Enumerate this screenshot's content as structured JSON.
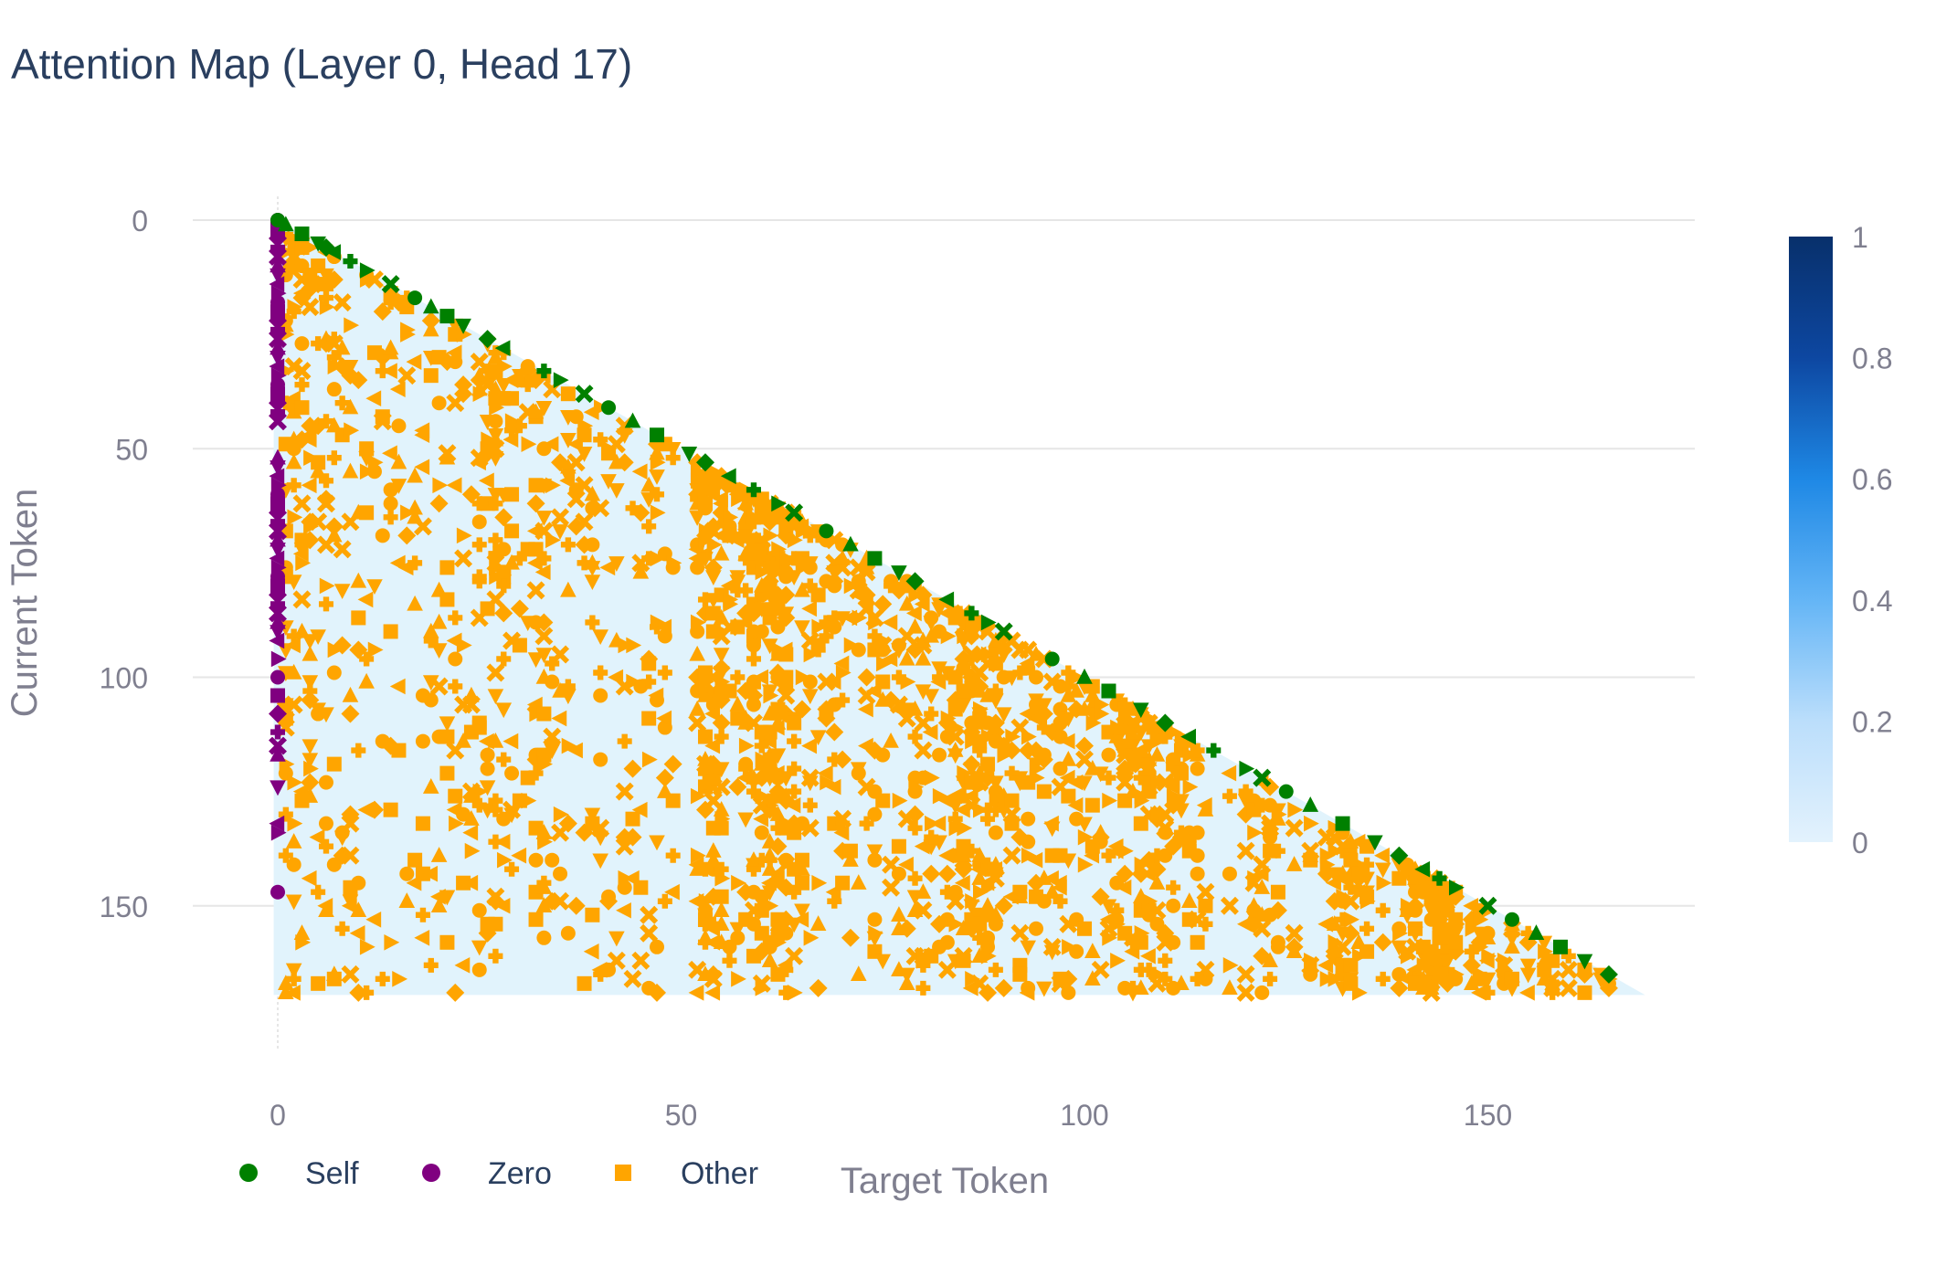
{
  "chart_data": {
    "type": "heatmap",
    "title": "Attention Map (Layer 0, Head 17)",
    "xlabel": "Target Token",
    "ylabel": "Current Token",
    "xlim": [
      -2,
      176
    ],
    "ylim": [
      185,
      -2
    ],
    "x_ticks": [
      0,
      50,
      100,
      150
    ],
    "y_ticks": [
      0,
      50,
      100,
      150
    ],
    "grid": true,
    "y_grid": true,
    "heatmap": {
      "rows": 170,
      "mask": "lower-triangular",
      "dominant_value": 0.05
    },
    "colorbar": {
      "range": [
        0,
        1
      ],
      "ticks": [
        0,
        0.2,
        0.4,
        0.6,
        0.8,
        1
      ],
      "colorscale": [
        "#e3f2fd",
        "#bbdefb",
        "#64b5f6",
        "#1e88e5",
        "#0d47a1",
        "#08306b"
      ]
    },
    "legend": {
      "position": "bottom-left",
      "entries": [
        {
          "label": "Self",
          "color": "#008000",
          "symbol": "circle"
        },
        {
          "label": "Zero",
          "color": "#800080",
          "symbol": "circle"
        },
        {
          "label": "Other",
          "color": "#ffa500",
          "symbol": "square"
        }
      ]
    },
    "series": [
      {
        "name": "Self",
        "color": "#008000",
        "points": [
          [
            0,
            0
          ],
          [
            1,
            1
          ],
          [
            3,
            3
          ],
          [
            5,
            5
          ],
          [
            6,
            6
          ],
          [
            7,
            7
          ],
          [
            9,
            9
          ],
          [
            11,
            11
          ],
          [
            14,
            14
          ],
          [
            17,
            17
          ],
          [
            19,
            19
          ],
          [
            21,
            21
          ],
          [
            23,
            23
          ],
          [
            26,
            26
          ],
          [
            28,
            28
          ],
          [
            33,
            33
          ],
          [
            35,
            35
          ],
          [
            38,
            38
          ],
          [
            41,
            41
          ],
          [
            44,
            44
          ],
          [
            47,
            47
          ],
          [
            51,
            51
          ],
          [
            53,
            53
          ],
          [
            56,
            56
          ],
          [
            59,
            59
          ],
          [
            62,
            62
          ],
          [
            64,
            64
          ],
          [
            68,
            68
          ],
          [
            71,
            71
          ],
          [
            74,
            74
          ],
          [
            77,
            77
          ],
          [
            79,
            79
          ],
          [
            83,
            83
          ],
          [
            86,
            86
          ],
          [
            88,
            88
          ],
          [
            90,
            90
          ],
          [
            96,
            96
          ],
          [
            100,
            100
          ],
          [
            103,
            103
          ],
          [
            107,
            107
          ],
          [
            110,
            110
          ],
          [
            113,
            113
          ],
          [
            116,
            116
          ],
          [
            120,
            120
          ],
          [
            122,
            122
          ],
          [
            125,
            125
          ],
          [
            128,
            128
          ],
          [
            132,
            132
          ],
          [
            136,
            136
          ],
          [
            139,
            139
          ],
          [
            142,
            142
          ],
          [
            144,
            144
          ],
          [
            146,
            146
          ],
          [
            150,
            150
          ],
          [
            153,
            153
          ],
          [
            156,
            156
          ],
          [
            159,
            159
          ],
          [
            162,
            162
          ],
          [
            165,
            165
          ]
        ]
      },
      {
        "name": "Zero",
        "color": "#800080",
        "points": [
          [
            0,
            0
          ],
          [
            0,
            2
          ],
          [
            0,
            4
          ],
          [
            0,
            6
          ],
          [
            0,
            8
          ],
          [
            0,
            10
          ],
          [
            0,
            12
          ],
          [
            0,
            14
          ],
          [
            0,
            16
          ],
          [
            0,
            18
          ],
          [
            0,
            20
          ],
          [
            0,
            22
          ],
          [
            0,
            24
          ],
          [
            0,
            26
          ],
          [
            0,
            28
          ],
          [
            0,
            30
          ],
          [
            0,
            32
          ],
          [
            0,
            34
          ],
          [
            0,
            36
          ],
          [
            0,
            38
          ],
          [
            0,
            40
          ],
          [
            0,
            42
          ],
          [
            0,
            44
          ],
          [
            0,
            52
          ],
          [
            0,
            54
          ],
          [
            0,
            56
          ],
          [
            0,
            58
          ],
          [
            0,
            60
          ],
          [
            0,
            62
          ],
          [
            0,
            64
          ],
          [
            0,
            66
          ],
          [
            0,
            68
          ],
          [
            0,
            70
          ],
          [
            0,
            72
          ],
          [
            0,
            74
          ],
          [
            0,
            76
          ],
          [
            0,
            78
          ],
          [
            0,
            80
          ],
          [
            0,
            82
          ],
          [
            0,
            84
          ],
          [
            0,
            86
          ],
          [
            0,
            88
          ],
          [
            0,
            90
          ],
          [
            0,
            92
          ],
          [
            0,
            96
          ],
          [
            0,
            100
          ],
          [
            0,
            104
          ],
          [
            0,
            108
          ],
          [
            0,
            112
          ],
          [
            0,
            115
          ],
          [
            0,
            117
          ],
          [
            0,
            124
          ],
          [
            0,
            132
          ],
          [
            0,
            134
          ],
          [
            0,
            147
          ]
        ]
      },
      {
        "name": "Other",
        "color": "#ffa500",
        "column_counts": [
          [
            1,
            28
          ],
          [
            2,
            30
          ],
          [
            3,
            26
          ],
          [
            4,
            24
          ],
          [
            5,
            14
          ],
          [
            6,
            22
          ],
          [
            7,
            20
          ],
          [
            8,
            12
          ],
          [
            9,
            18
          ],
          [
            10,
            12
          ],
          [
            11,
            16
          ],
          [
            12,
            10
          ],
          [
            13,
            8
          ],
          [
            14,
            14
          ],
          [
            15,
            10
          ],
          [
            16,
            12
          ],
          [
            17,
            8
          ],
          [
            18,
            10
          ],
          [
            19,
            12
          ],
          [
            20,
            14
          ],
          [
            21,
            10
          ],
          [
            22,
            16
          ],
          [
            23,
            12
          ],
          [
            24,
            10
          ],
          [
            25,
            20
          ],
          [
            26,
            22
          ],
          [
            27,
            30
          ],
          [
            28,
            24
          ],
          [
            29,
            14
          ],
          [
            30,
            8
          ],
          [
            31,
            10
          ],
          [
            32,
            22
          ],
          [
            33,
            24
          ],
          [
            34,
            12
          ],
          [
            35,
            10
          ],
          [
            36,
            14
          ],
          [
            37,
            8
          ],
          [
            38,
            10
          ],
          [
            39,
            12
          ],
          [
            40,
            14
          ],
          [
            41,
            8
          ],
          [
            42,
            10
          ],
          [
            43,
            14
          ],
          [
            44,
            10
          ],
          [
            45,
            8
          ],
          [
            46,
            12
          ],
          [
            47,
            16
          ],
          [
            48,
            10
          ],
          [
            49,
            8
          ],
          [
            52,
            28
          ],
          [
            53,
            44
          ],
          [
            54,
            40
          ],
          [
            55,
            34
          ],
          [
            56,
            12
          ],
          [
            57,
            18
          ],
          [
            58,
            26
          ],
          [
            59,
            30
          ],
          [
            60,
            40
          ],
          [
            61,
            44
          ],
          [
            62,
            42
          ],
          [
            63,
            34
          ],
          [
            64,
            22
          ],
          [
            65,
            16
          ],
          [
            66,
            18
          ],
          [
            67,
            10
          ],
          [
            68,
            12
          ],
          [
            69,
            16
          ],
          [
            70,
            14
          ],
          [
            71,
            8
          ],
          [
            72,
            10
          ],
          [
            73,
            12
          ],
          [
            74,
            16
          ],
          [
            75,
            10
          ],
          [
            76,
            8
          ],
          [
            77,
            12
          ],
          [
            78,
            14
          ],
          [
            79,
            16
          ],
          [
            80,
            18
          ],
          [
            81,
            12
          ],
          [
            82,
            14
          ],
          [
            83,
            16
          ],
          [
            84,
            20
          ],
          [
            85,
            26
          ],
          [
            86,
            28
          ],
          [
            87,
            30
          ],
          [
            88,
            24
          ],
          [
            89,
            22
          ],
          [
            90,
            12
          ],
          [
            91,
            10
          ],
          [
            92,
            12
          ],
          [
            93,
            14
          ],
          [
            94,
            16
          ],
          [
            95,
            12
          ],
          [
            96,
            10
          ],
          [
            97,
            12
          ],
          [
            98,
            14
          ],
          [
            99,
            8
          ],
          [
            100,
            10
          ],
          [
            101,
            12
          ],
          [
            102,
            8
          ],
          [
            103,
            10
          ],
          [
            104,
            14
          ],
          [
            105,
            18
          ],
          [
            106,
            16
          ],
          [
            107,
            20
          ],
          [
            108,
            22
          ],
          [
            109,
            18
          ],
          [
            110,
            16
          ],
          [
            111,
            14
          ],
          [
            112,
            12
          ],
          [
            113,
            8
          ],
          [
            114,
            10
          ],
          [
            115,
            8
          ],
          [
            118,
            6
          ],
          [
            120,
            8
          ],
          [
            121,
            10
          ],
          [
            122,
            10
          ],
          [
            123,
            12
          ],
          [
            124,
            8
          ],
          [
            126,
            6
          ],
          [
            128,
            8
          ],
          [
            130,
            10
          ],
          [
            131,
            16
          ],
          [
            132,
            18
          ],
          [
            133,
            16
          ],
          [
            134,
            14
          ],
          [
            135,
            8
          ],
          [
            137,
            6
          ],
          [
            139,
            8
          ],
          [
            140,
            10
          ],
          [
            141,
            24
          ],
          [
            142,
            26
          ],
          [
            143,
            28
          ],
          [
            144,
            22
          ],
          [
            145,
            16
          ],
          [
            146,
            10
          ],
          [
            148,
            8
          ],
          [
            149,
            10
          ],
          [
            150,
            8
          ],
          [
            152,
            6
          ],
          [
            153,
            8
          ],
          [
            155,
            6
          ],
          [
            157,
            6
          ],
          [
            158,
            6
          ],
          [
            160,
            6
          ],
          [
            162,
            4
          ],
          [
            164,
            4
          ],
          [
            165,
            4
          ]
        ]
      }
    ]
  }
}
